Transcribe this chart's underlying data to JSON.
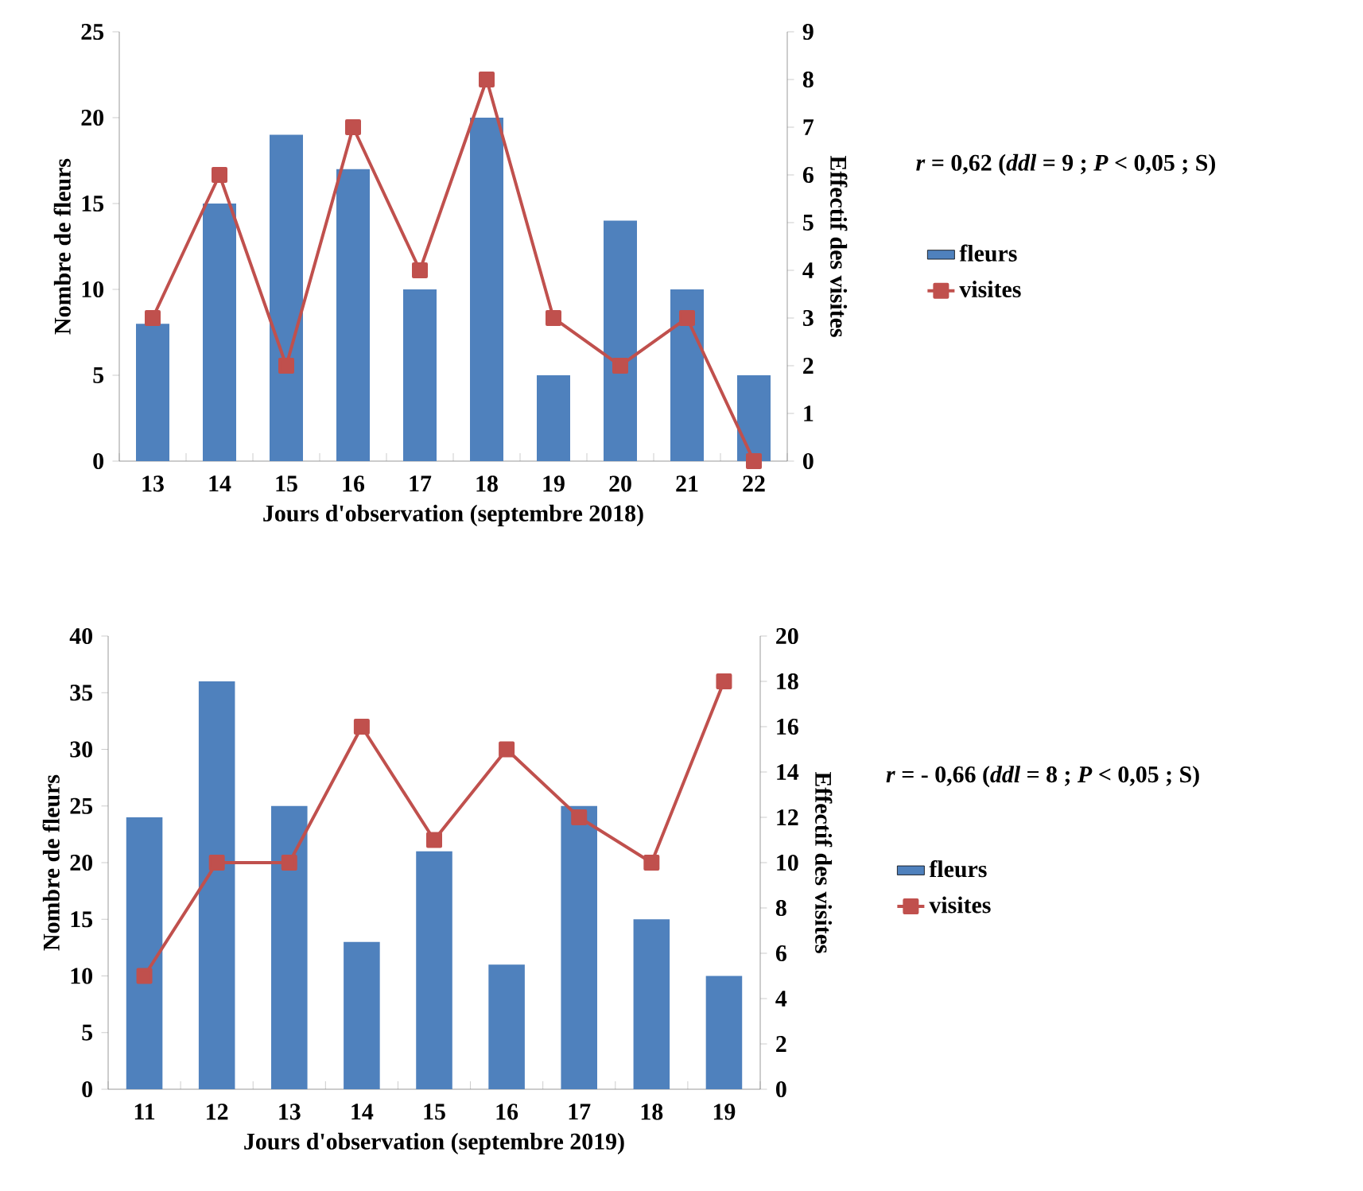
{
  "chart_data": [
    {
      "type": "bar",
      "categories": [
        "13",
        "14",
        "15",
        "16",
        "17",
        "18",
        "19",
        "20",
        "21",
        "22"
      ],
      "series": [
        {
          "name": "fleurs",
          "color": "#4f81bd",
          "values": [
            8,
            15,
            19,
            17,
            10,
            20,
            5,
            14,
            10,
            5
          ]
        },
        {
          "name": "visites",
          "type": "line",
          "axis": "y2",
          "color": "#c0504d",
          "values": [
            3,
            6,
            2,
            7,
            4,
            8,
            3,
            2,
            3,
            0
          ]
        }
      ],
      "xlabel": "Jours d'observation  (septembre 2018)",
      "ylabel": "Nombre de fleurs",
      "y2label": "Effectif  des  visites",
      "ylim": [
        0,
        25
      ],
      "yticks": [
        0,
        5,
        10,
        15,
        20,
        25
      ],
      "y2lim": [
        0,
        9
      ],
      "y2ticks": [
        0,
        1,
        2,
        3,
        4,
        5,
        6,
        7,
        8,
        9
      ],
      "annotations": [
        "*r* = 0,62 (*ddl* = 9 ; *P* < 0,05 ; S)"
      ],
      "legend": "right",
      "marker": "square"
    },
    {
      "type": "bar",
      "categories": [
        "11",
        "12",
        "13",
        "14",
        "15",
        "16",
        "17",
        "18",
        "19"
      ],
      "series": [
        {
          "name": "fleurs",
          "color": "#4f81bd",
          "values": [
            24,
            36,
            25,
            13,
            21,
            11,
            25,
            15,
            10
          ]
        },
        {
          "name": "visites",
          "type": "line",
          "axis": "y2",
          "color": "#c0504d",
          "values": [
            5,
            10,
            10,
            16,
            11,
            15,
            12,
            10,
            18
          ]
        }
      ],
      "xlabel": "Jours d'observation  (septembre 2019)",
      "ylabel": "Nombre de fleurs",
      "y2label": "Effectif  des  visites",
      "ylim": [
        0,
        40
      ],
      "yticks": [
        0,
        5,
        10,
        15,
        20,
        25,
        30,
        35,
        40
      ],
      "y2lim": [
        0,
        20
      ],
      "y2ticks": [
        0,
        2,
        4,
        6,
        8,
        10,
        12,
        14,
        16,
        18,
        20
      ],
      "annotations": [
        "*r* = - 0,66 (*ddl* = 8 ; *P* < 0,05 ; S)"
      ],
      "legend": "right",
      "marker": "square"
    }
  ]
}
